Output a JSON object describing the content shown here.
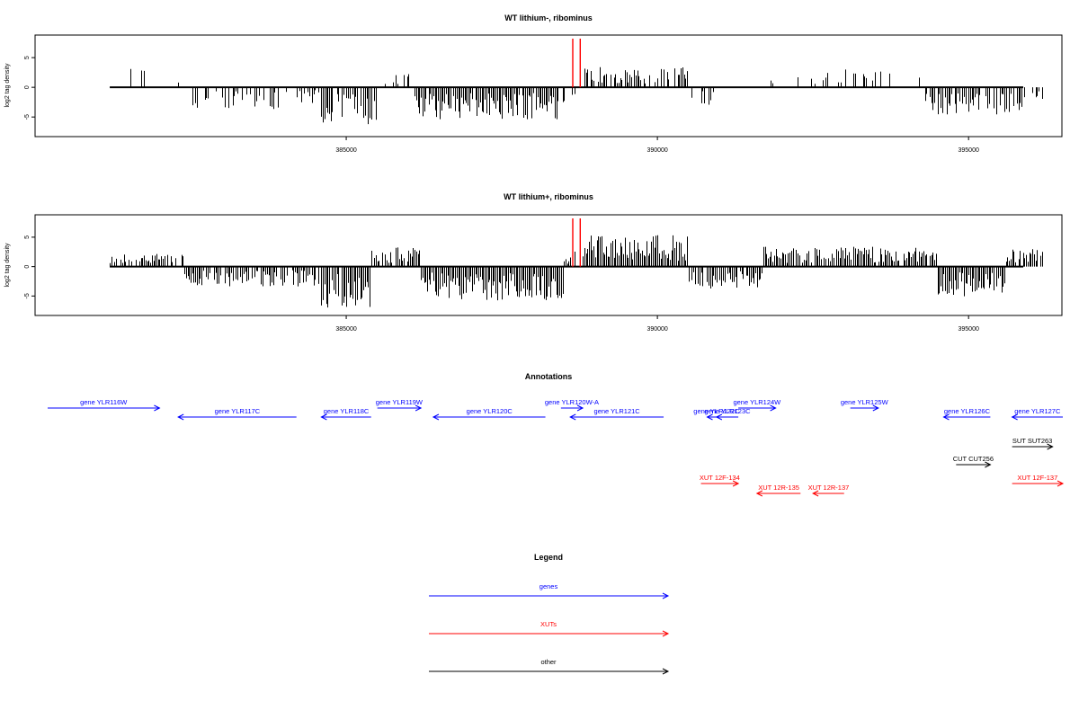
{
  "colors": {
    "gene": "#0000ff",
    "xut": "#ff0000",
    "other": "#000000",
    "marker": "#ff0000",
    "bars": "#000000"
  },
  "chart_data": [
    {
      "type": "bar",
      "title": "WT lithium-, ribominus",
      "ylabel": "log2 tag density",
      "xlim": [
        380000,
        396500
      ],
      "ylim": [
        -8,
        8.5
      ],
      "xticks": [
        385000,
        390000,
        395000
      ],
      "xticklabels": [
        "385000",
        "390000",
        "395000"
      ],
      "yticks": [
        -5,
        0,
        5
      ],
      "yticklabels": [
        "-5",
        "0",
        "5"
      ],
      "markers": [
        388640,
        388760
      ],
      "x_start": 381200,
      "x_step": 25,
      "segments": [
        {
          "from": 381200,
          "to": 381800,
          "density": 0.12,
          "mean": 2.0
        },
        {
          "from": 381800,
          "to": 382400,
          "density": 0.05,
          "mean": 1.0
        },
        {
          "from": 382400,
          "to": 384000,
          "density": 0.4,
          "mean": -2.2
        },
        {
          "from": 384000,
          "to": 384600,
          "density": 0.3,
          "mean": -1.6
        },
        {
          "from": 384600,
          "to": 385500,
          "density": 0.9,
          "mean": -3.8
        },
        {
          "from": 385500,
          "to": 386100,
          "density": 0.25,
          "mean": 1.8
        },
        {
          "from": 386100,
          "to": 388400,
          "density": 0.95,
          "mean": -3.2
        },
        {
          "from": 388400,
          "to": 388700,
          "density": 0.3,
          "mean": -1.5
        },
        {
          "from": 388800,
          "to": 390500,
          "density": 0.7,
          "mean": 2.0
        },
        {
          "from": 390500,
          "to": 391000,
          "density": 0.4,
          "mean": -1.8
        },
        {
          "from": 391800,
          "to": 393000,
          "density": 0.12,
          "mean": 1.6
        },
        {
          "from": 393000,
          "to": 394300,
          "density": 0.22,
          "mean": 1.8
        },
        {
          "from": 394300,
          "to": 395900,
          "density": 0.7,
          "mean": -2.8
        },
        {
          "from": 395900,
          "to": 396200,
          "density": 0.3,
          "mean": -1.2
        }
      ]
    },
    {
      "type": "bar",
      "title": "WT lithium+, ribominus",
      "ylabel": "log2 tag density",
      "xlim": [
        380000,
        396500
      ],
      "ylim": [
        -8,
        8.5
      ],
      "xticks": [
        385000,
        390000,
        395000
      ],
      "xticklabels": [
        "385000",
        "390000",
        "395000"
      ],
      "yticks": [
        -5,
        0,
        5
      ],
      "yticklabels": [
        "-5",
        "0",
        "5"
      ],
      "markers": [
        388640,
        388760
      ],
      "x_start": 381200,
      "x_step": 25,
      "segments": [
        {
          "from": 381200,
          "to": 382400,
          "density": 0.6,
          "mean": 1.4
        },
        {
          "from": 382400,
          "to": 384600,
          "density": 0.85,
          "mean": -2.0
        },
        {
          "from": 384600,
          "to": 385400,
          "density": 0.95,
          "mean": -4.2
        },
        {
          "from": 385400,
          "to": 386200,
          "density": 0.8,
          "mean": 2.0
        },
        {
          "from": 386200,
          "to": 388500,
          "density": 1.0,
          "mean": -3.4
        },
        {
          "from": 388500,
          "to": 388700,
          "density": 0.6,
          "mean": 1.5
        },
        {
          "from": 388800,
          "to": 390500,
          "density": 1.0,
          "mean": 3.2
        },
        {
          "from": 390500,
          "to": 391700,
          "density": 0.85,
          "mean": -2.2
        },
        {
          "from": 391700,
          "to": 394500,
          "density": 0.9,
          "mean": 2.0
        },
        {
          "from": 394500,
          "to": 395600,
          "density": 0.9,
          "mean": -3.0
        },
        {
          "from": 395600,
          "to": 396200,
          "density": 0.85,
          "mean": 2.0
        }
      ]
    }
  ],
  "annotations": {
    "title": "Annotations",
    "features": [
      {
        "label": "gene YLR116W",
        "class": "gene",
        "strand": "+",
        "start": 379800,
        "end": 382000,
        "row": 0
      },
      {
        "label": "gene YLR117C",
        "class": "gene",
        "strand": "-",
        "start": 382300,
        "end": 384200,
        "row": 1
      },
      {
        "label": "gene YLR118C",
        "class": "gene",
        "strand": "-",
        "start": 384600,
        "end": 385400,
        "row": 1
      },
      {
        "label": "gene YLR119W",
        "class": "gene",
        "strand": "+",
        "start": 385500,
        "end": 386200,
        "row": 0
      },
      {
        "label": "gene YLR120C",
        "class": "gene",
        "strand": "-",
        "start": 386400,
        "end": 388200,
        "row": 1
      },
      {
        "label": "gene YLR120W-A",
        "class": "gene",
        "strand": "+",
        "start": 388450,
        "end": 388800,
        "row": 0
      },
      {
        "label": "gene YLR121C",
        "class": "gene",
        "strand": "-",
        "start": 388600,
        "end": 390100,
        "row": 1
      },
      {
        "label": "gene YLR122C",
        "class": "gene",
        "strand": "-",
        "start": 390800,
        "end": 391100,
        "row": 1
      },
      {
        "label": "gene YLR123C",
        "class": "gene",
        "strand": "-",
        "start": 390950,
        "end": 391300,
        "row": 1
      },
      {
        "label": "gene YLR124W",
        "class": "gene",
        "strand": "+",
        "start": 391300,
        "end": 391900,
        "row": 0
      },
      {
        "label": "gene YLR125W",
        "class": "gene",
        "strand": "+",
        "start": 393100,
        "end": 393550,
        "row": 0
      },
      {
        "label": "gene YLR126C",
        "class": "gene",
        "strand": "-",
        "start": 394600,
        "end": 395350,
        "row": 1
      },
      {
        "label": "gene YLR127C",
        "class": "gene",
        "strand": "-",
        "start": 395700,
        "end": 397000,
        "row": 1
      },
      {
        "label": "SUT SUT263",
        "class": "other",
        "strand": "+",
        "start": 395700,
        "end": 396350,
        "row": 2
      },
      {
        "label": "CUT CUT256",
        "class": "other",
        "strand": "+",
        "start": 394800,
        "end": 395350,
        "row": 3
      },
      {
        "label": "XUT 12F-134",
        "class": "xut",
        "strand": "+",
        "start": 390700,
        "end": 391300,
        "row": 4
      },
      {
        "label": "XUT 12R-135",
        "class": "xut",
        "strand": "-",
        "start": 391600,
        "end": 392300,
        "row": 5
      },
      {
        "label": "XUT 12R-137",
        "class": "xut",
        "strand": "-",
        "start": 392500,
        "end": 393000,
        "row": 5
      },
      {
        "label": "XUT 12F-137",
        "class": "xut",
        "strand": "+",
        "start": 395700,
        "end": 396800,
        "row": 4
      }
    ]
  },
  "legend": {
    "title": "Legend",
    "items": [
      {
        "label": "genes",
        "class": "gene"
      },
      {
        "label": "XUTs",
        "class": "xut"
      },
      {
        "label": "other",
        "class": "other"
      }
    ]
  }
}
